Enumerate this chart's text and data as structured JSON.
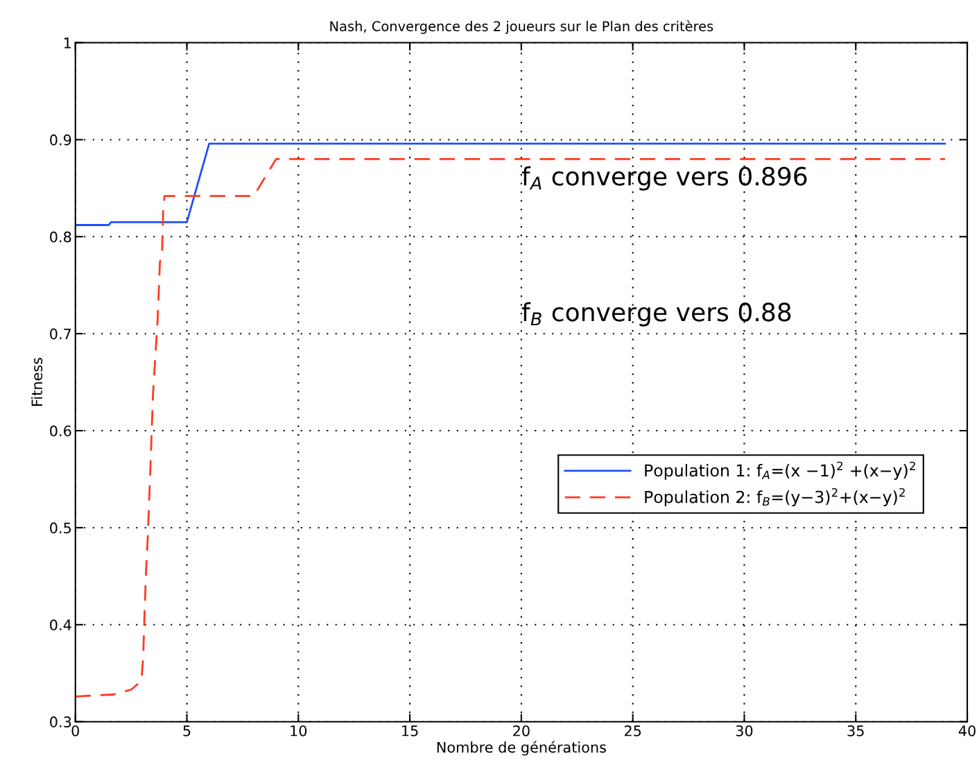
{
  "chart_data": {
    "type": "line",
    "title": "Nash, Convergence des 2 joueurs sur le Plan des critères",
    "xlabel": "Nombre de générations",
    "ylabel": "Fitness",
    "xlim": [
      0,
      40
    ],
    "xticks": [
      0,
      5,
      10,
      15,
      20,
      25,
      30,
      35,
      40
    ],
    "ylim": [
      0.3,
      1
    ],
    "yticks": [
      0.3,
      0.4,
      0.5,
      0.6,
      0.7,
      0.8,
      0.9,
      1
    ],
    "grid": true,
    "legend": "center right",
    "annotations": [
      "f$_{A}$ converge vers 0.896",
      "f$_{B}$ converge vers 0.88"
    ],
    "series": [
      {
        "name": "Population 1: f$_{A}$=(x −1)$^{2}$ +(x−y)$^{2}$",
        "color": "#1f4fff",
        "line_style": "solid",
        "x": [
          0,
          1.5,
          1.6,
          5,
          6,
          39
        ],
        "values": [
          0.812,
          0.812,
          0.815,
          0.815,
          0.896,
          0.896
        ]
      },
      {
        "name": "Population 2: f$_{B}$=(y−3)$^{2}$+(x−y)$^{2}$",
        "color": "#ff3a1f",
        "line_style": "dashed",
        "x": [
          0,
          1.7,
          2.5,
          2.96,
          3.04,
          3.1,
          3.17,
          3.24,
          3.34,
          3.48,
          3.6,
          3.69,
          3.79,
          3.89,
          3.94,
          4,
          8,
          9,
          39
        ],
        "values": [
          0.326,
          0.328,
          0.333,
          0.342,
          0.367,
          0.41,
          0.456,
          0.487,
          0.546,
          0.637,
          0.682,
          0.715,
          0.773,
          0.785,
          0.83,
          0.842,
          0.842,
          0.88,
          0.88
        ]
      }
    ]
  }
}
